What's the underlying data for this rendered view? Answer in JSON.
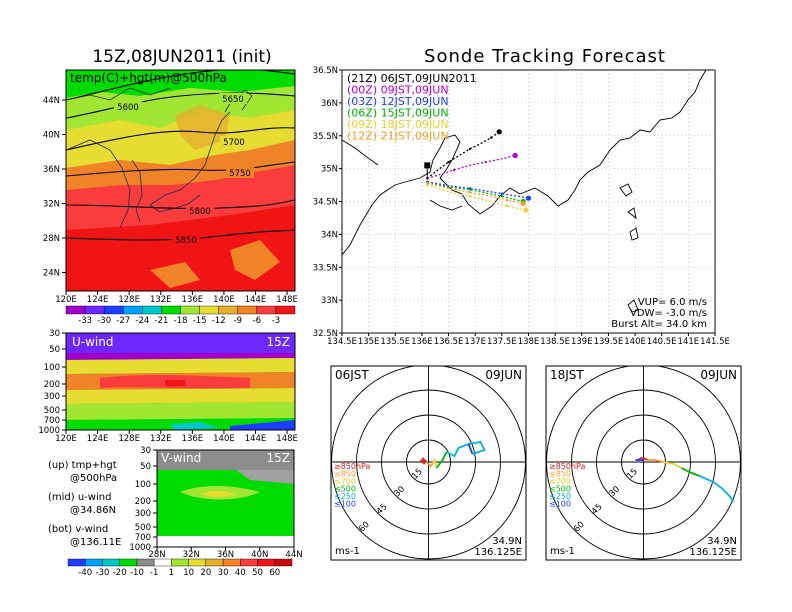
{
  "header": {
    "init_title": "15Z,08JUN2011 (init)",
    "main_title": "Sonde Tracking Forecast"
  },
  "panel_500hpa": {
    "label": "temp(C)+hgt(m)@500hPa",
    "x_ticks": [
      "120E",
      "124E",
      "128E",
      "132E",
      "136E",
      "140E",
      "144E",
      "148E"
    ],
    "y_ticks": [
      "44N",
      "40N",
      "36N",
      "32N",
      "28N",
      "24N"
    ],
    "contours": [
      "5600",
      "5650",
      "5700",
      "5750",
      "5800",
      "5850"
    ],
    "colorbar": [
      "-33",
      "-30",
      "-27",
      "-24",
      "-21",
      "-18",
      "-15",
      "-12",
      "-9",
      "-6",
      "-3"
    ],
    "colors": [
      "#a000c8",
      "#6e28ff",
      "#1e3cff",
      "#00a0ff",
      "#00c8c8",
      "#00dc00",
      "#a0e632",
      "#e6dc32",
      "#e6af2d",
      "#f08228",
      "#fa3c3c",
      "#f01414"
    ]
  },
  "panel_uwind": {
    "label": "U-wind",
    "time": "15Z",
    "x_ticks": [
      "120E",
      "124E",
      "128E",
      "132E",
      "136E",
      "140E",
      "144E",
      "148E"
    ],
    "y_ticks": [
      "30",
      "50",
      "100",
      "200",
      "300",
      "500",
      "700",
      "1000"
    ]
  },
  "panel_vwind": {
    "label": "V-wind",
    "time": "15Z",
    "x_ticks": [
      "28N",
      "32N",
      "36N",
      "40N",
      "44N"
    ],
    "y_ticks": [
      "30",
      "50",
      "100",
      "200",
      "300",
      "500",
      "700",
      "1000"
    ],
    "colorbar": [
      "-40",
      "-30",
      "-20",
      "-10",
      "-1",
      "1",
      "10",
      "20",
      "30",
      "40",
      "50",
      "60"
    ]
  },
  "legend_left": {
    "up1": "(up) tmp+hgt",
    "up2": "@500hPa",
    "mid1": "(mid) u-wind",
    "mid2": "@34.86N",
    "bot1": "(bot) v-wind",
    "bot2": "@136.11E"
  },
  "track_map": {
    "x_ticks": [
      "134.5E",
      "135E",
      "135.5E",
      "136E",
      "136.5E",
      "137E",
      "137.5E",
      "138E",
      "138.5E",
      "139E",
      "139.5E",
      "140E",
      "140.5E",
      "141E",
      "141.5E"
    ],
    "y_ticks": [
      "36.5N",
      "36N",
      "35.5N",
      "35N",
      "34.5N",
      "34N",
      "33.5N",
      "33N",
      "32.5N"
    ],
    "legend": [
      {
        "text": "(21Z)  06JST,09JUN2011",
        "color": "#000000"
      },
      {
        "text": "(00Z)  09JST,09JUN",
        "color": "#b400c8"
      },
      {
        "text": "(03Z)  12JST,09JUN",
        "color": "#1e3cff"
      },
      {
        "text": "(06Z)  15JST,09JUN",
        "color": "#00b400"
      },
      {
        "text": "(09Z)  18JST,09JUN",
        "color": "#e6d232"
      },
      {
        "text": "(12Z)  21JST,09JUN",
        "color": "#f0a028"
      }
    ],
    "vup": "VUP=  6.0  m/s",
    "vdw": "VDW=  -3.0  m/s",
    "burst": "Burst Alt=  34.0  km"
  },
  "chart_data": {
    "type": "line",
    "title": "Sonde Tracking Forecast",
    "xlim": [
      134.5,
      141.5
    ],
    "ylim": [
      32.5,
      36.5
    ],
    "series": [
      {
        "name": "(21Z) 06JST,09JUN2011",
        "color": "#000000",
        "x": [
          136.1,
          136.3,
          136.5,
          136.7,
          136.9,
          137.1,
          137.3,
          137.45
        ],
        "y": [
          34.85,
          34.98,
          35.1,
          35.2,
          35.3,
          35.38,
          35.47,
          35.56
        ]
      },
      {
        "name": "(00Z) 09JST,09JUN",
        "color": "#b400c8",
        "x": [
          136.1,
          136.3,
          136.6,
          136.9,
          137.2,
          137.5,
          137.75
        ],
        "y": [
          34.85,
          34.9,
          34.98,
          35.05,
          35.1,
          35.15,
          35.2
        ]
      },
      {
        "name": "(03Z) 12JST,09JUN",
        "color": "#1e3cff",
        "x": [
          136.1,
          136.5,
          136.9,
          137.2,
          137.5,
          137.8,
          138.0
        ],
        "y": [
          34.8,
          34.74,
          34.7,
          34.66,
          34.62,
          34.58,
          34.55
        ]
      },
      {
        "name": "(06Z) 15JST,09JUN",
        "color": "#00b400",
        "x": [
          136.1,
          136.5,
          136.9,
          137.2,
          137.5,
          137.9
        ],
        "y": [
          34.78,
          34.72,
          34.68,
          34.63,
          34.58,
          34.5
        ]
      },
      {
        "name": "(09Z) 18JST,09JUN",
        "color": "#e6d232",
        "x": [
          136.1,
          136.5,
          136.9,
          137.3,
          137.6,
          137.95
        ],
        "y": [
          34.75,
          34.65,
          34.58,
          34.5,
          34.43,
          34.37
        ]
      },
      {
        "name": "(12Z) 21JST,09JUN",
        "color": "#f0a028",
        "x": [
          136.1,
          136.5,
          136.9,
          137.3,
          137.6,
          137.9
        ],
        "y": [
          34.78,
          34.7,
          34.64,
          34.58,
          34.52,
          34.47
        ]
      }
    ]
  },
  "hodo_left": {
    "time": "06JST",
    "date": "09JUN",
    "ring_labels": [
      "15",
      "30",
      "45",
      "60"
    ],
    "levels": [
      {
        "text": "≥850hPa",
        "color": "#e61e1e"
      },
      {
        "text": "≤850",
        "color": "#f0a028"
      },
      {
        "text": "≤700",
        "color": "#e6d232"
      },
      {
        "text": "≤500",
        "color": "#00b400"
      },
      {
        "text": "≤250",
        "color": "#00b4dc"
      },
      {
        "text": "≤100",
        "color": "#1e3cff"
      }
    ],
    "units": "ms-1",
    "lat": "34.9N",
    "lon": "136.125E"
  },
  "hodo_right": {
    "time": "18JST",
    "date": "09JUN",
    "ring_labels": [
      "15",
      "30",
      "45",
      "60"
    ],
    "units": "ms-1",
    "lat": "34.9N",
    "lon": "136.125E"
  }
}
